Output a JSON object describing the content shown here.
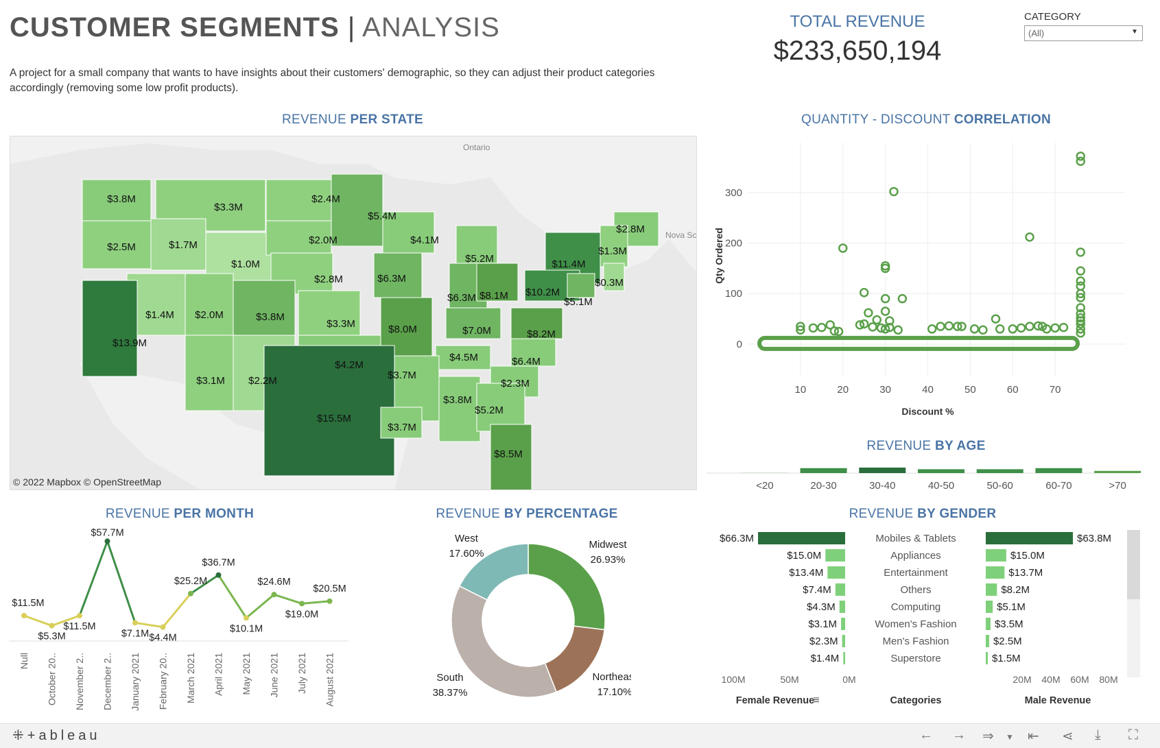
{
  "header": {
    "title_bold": "CUSTOMER SEGMENTS",
    "title_sep": "|",
    "title_light": "ANALYSIS",
    "description": "A project for a small company that wants to have insights about their customers' demographic, so they can adjust their product categories accordingly (removing some low profit products)."
  },
  "kpi": {
    "label": "TOTAL REVENUE",
    "value": "$233,650,194"
  },
  "filter": {
    "label": "CATEGORY",
    "selected": "(All)"
  },
  "sections": {
    "state": {
      "a": "REVENUE ",
      "b": "PER STATE"
    },
    "corr": {
      "a": "QUANTITY - DISCOUNT ",
      "b": "CORRELATION"
    },
    "age": {
      "a": "REVENUE ",
      "b": "BY AGE"
    },
    "month": {
      "a": "REVENUE ",
      "b": "PER MONTH"
    },
    "pct": {
      "a": "REVENUE ",
      "b": "BY PERCENTAGE"
    },
    "gender": {
      "a": "REVENUE ",
      "b": "BY GENDER"
    }
  },
  "map": {
    "attribution": "© 2022 Mapbox  © OpenStreetMap",
    "place_labels": [
      "Ontario",
      "Nova Sco"
    ],
    "state_labels": [
      "$3.8M",
      "$3.3M",
      "$2.4M",
      "$5.4M",
      "$4.1M",
      "$2.8M",
      "$2.5M",
      "$1.7M",
      "$1.0M",
      "$2.0M",
      "$5.2M",
      "$11.4M",
      "$1.3M",
      "$6.3M",
      "$0.3M",
      "$2.8M",
      "$10.2M",
      "$6.3M",
      "$8.1M",
      "$5.1M",
      "$1.4M",
      "$2.0M",
      "$3.8M",
      "$3.3M",
      "$8.0M",
      "$7.0M",
      "$8.2M",
      "$13.9M",
      "$4.5M",
      "$6.4M",
      "$4.2M",
      "$3.7M",
      "$2.3M",
      "$3.1M",
      "$2.2M",
      "$3.8M",
      "$5.2M",
      "$15.5M",
      "$3.7M",
      "$8.5M"
    ]
  },
  "chart_data": [
    {
      "type": "scatter",
      "title": "QUANTITY - DISCOUNT CORRELATION",
      "xlabel": "Discount %",
      "ylabel": "Qty Ordered",
      "xticks": [
        10,
        20,
        30,
        40,
        50,
        60,
        70
      ],
      "yticks": [
        0,
        100,
        200,
        300
      ],
      "xlim": [
        0,
        80
      ],
      "ylim": [
        -30,
        380
      ],
      "points": [
        [
          76,
          372
        ],
        [
          76,
          362
        ],
        [
          32,
          302
        ],
        [
          64,
          212
        ],
        [
          20,
          190
        ],
        [
          76,
          182
        ],
        [
          30,
          155
        ],
        [
          30,
          150
        ],
        [
          76,
          145
        ],
        [
          76,
          125
        ],
        [
          76,
          115
        ],
        [
          76,
          100
        ],
        [
          76,
          92
        ],
        [
          76,
          72
        ],
        [
          76,
          60
        ],
        [
          76,
          52
        ],
        [
          76,
          46
        ],
        [
          76,
          40
        ],
        [
          76,
          30
        ],
        [
          76,
          22
        ],
        [
          25,
          102
        ],
        [
          30,
          90
        ],
        [
          34,
          90
        ],
        [
          30,
          65
        ],
        [
          26,
          62
        ],
        [
          28,
          48
        ],
        [
          31,
          46
        ],
        [
          25,
          40
        ],
        [
          24,
          38
        ],
        [
          27,
          34
        ],
        [
          17,
          38
        ],
        [
          10,
          35
        ],
        [
          10,
          28
        ],
        [
          13,
          32
        ],
        [
          15,
          33
        ],
        [
          18,
          26
        ],
        [
          19,
          25
        ],
        [
          29,
          32
        ],
        [
          30,
          30
        ],
        [
          31,
          33
        ],
        [
          33,
          28
        ],
        [
          41,
          30
        ],
        [
          43,
          35
        ],
        [
          45,
          36
        ],
        [
          47,
          35
        ],
        [
          48,
          35
        ],
        [
          51,
          30
        ],
        [
          53,
          28
        ],
        [
          56,
          50
        ],
        [
          57,
          30
        ],
        [
          60,
          30
        ],
        [
          62,
          32
        ],
        [
          64,
          35
        ],
        [
          66,
          36
        ],
        [
          67,
          35
        ],
        [
          68,
          30
        ],
        [
          70,
          32
        ],
        [
          72,
          33
        ]
      ]
    },
    {
      "type": "bar",
      "title": "REVENUE BY AGE",
      "categories": [
        "<20",
        "20-30",
        "30-40",
        "40-50",
        "50-60",
        "60-70",
        ">70"
      ],
      "values": [
        0.2,
        9,
        10,
        7,
        7,
        9,
        4
      ]
    },
    {
      "type": "line",
      "title": "REVENUE PER MONTH",
      "categories": [
        "Null",
        "October 20..",
        "November 2..",
        "December 2..",
        "January 2021",
        "February 20..",
        "March 2021",
        "April 2021",
        "May 2021",
        "June 2021",
        "July 2021",
        "August 2021"
      ],
      "values": [
        11.5,
        5.3,
        11.5,
        57.7,
        7.1,
        4.4,
        25.2,
        36.7,
        10.1,
        24.6,
        19.0,
        20.5
      ],
      "labels": [
        "$11.5M",
        "$5.3M",
        "$11.5M",
        "$57.7M",
        "$7.1M",
        "$4.4M",
        "$25.2M",
        "$36.7M",
        "$10.1M",
        "$24.6M",
        "$19.0M",
        "$20.5M"
      ]
    },
    {
      "type": "pie",
      "title": "REVENUE BY PERCENTAGE",
      "slices": [
        {
          "label": "Midwest",
          "value": 26.93,
          "pct": "26.93%",
          "color": "#5aa04a"
        },
        {
          "label": "Northeast",
          "value": 17.1,
          "pct": "17.10%",
          "color": "#9c7358"
        },
        {
          "label": "South",
          "value": 38.37,
          "pct": "38.37%",
          "color": "#bbb0aa"
        },
        {
          "label": "West",
          "value": 17.6,
          "pct": "17.60%",
          "color": "#7fb9b5"
        }
      ]
    },
    {
      "type": "bar",
      "title": "REVENUE BY GENDER",
      "categories": [
        "Mobiles & Tablets",
        "Appliances",
        "Entertainment",
        "Others",
        "Computing",
        "Women's Fashion",
        "Men's Fashion",
        "Superstore"
      ],
      "series": [
        {
          "name": "Female Revenue",
          "values": [
            66.3,
            15.0,
            13.4,
            7.4,
            4.3,
            3.1,
            2.3,
            1.4
          ],
          "labels": [
            "$66.3M",
            "$15.0M",
            "$13.4M",
            "$7.4M",
            "$4.3M",
            "$3.1M",
            "$2.3M",
            "$1.4M"
          ]
        },
        {
          "name": "Male Revenue",
          "values": [
            63.8,
            15.0,
            13.7,
            8.2,
            5.1,
            3.5,
            2.5,
            1.5
          ],
          "labels": [
            "$63.8M",
            "$15.0M",
            "$13.7M",
            "$8.2M",
            "$5.1M",
            "$3.5M",
            "$2.5M",
            "$1.5M"
          ]
        }
      ],
      "female_axis": [
        "100M",
        "50M",
        "0M"
      ],
      "male_axis": [
        "20M",
        "40M",
        "60M",
        "80M"
      ],
      "xlabel_female": "Female Revenue",
      "xlabel_center": "Categories",
      "xlabel_male": "Male Revenue"
    }
  ],
  "footer": {
    "logo": "+ableau"
  }
}
